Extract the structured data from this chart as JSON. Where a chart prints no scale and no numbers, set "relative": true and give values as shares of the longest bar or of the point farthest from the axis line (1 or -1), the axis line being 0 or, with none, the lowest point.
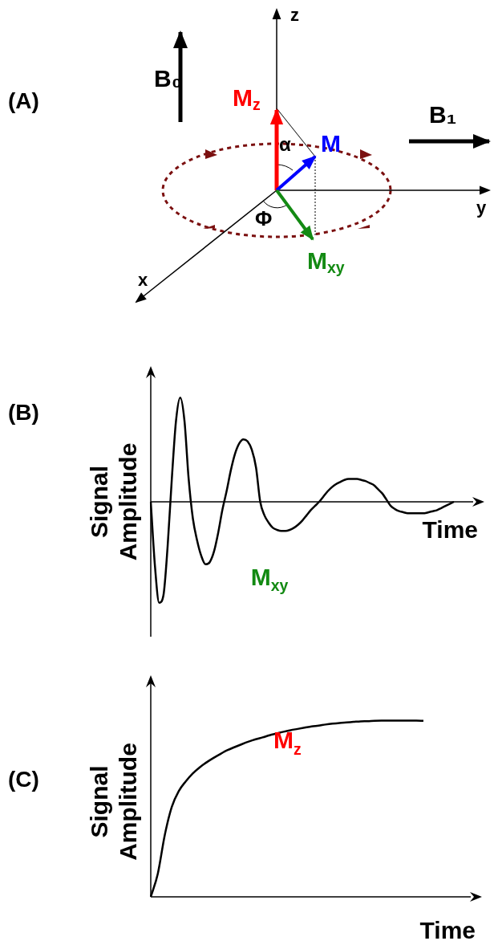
{
  "chart_data": [
    {
      "type": "other",
      "title": "(A)",
      "annotations": [
        "z",
        "y",
        "x",
        "B₀",
        "B₁",
        "M$_{z}$",
        "M",
        "α",
        "Φ",
        "M$_{xy}$"
      ]
    },
    {
      "type": "line",
      "title": "(B)",
      "xlabel": "Time",
      "ylabel": "Signal Amplitude",
      "annotations": [
        "M$_{xy}$"
      ],
      "relative": true,
      "marker": "none",
      "categories": [
        null,
        null,
        null,
        null,
        null,
        null,
        null,
        null,
        null,
        null,
        null,
        null,
        null,
        null,
        null,
        null,
        null,
        null,
        null,
        null,
        null,
        null,
        null,
        null,
        null,
        null,
        null,
        null,
        null,
        null,
        null,
        null,
        null,
        null,
        null,
        null,
        null,
        null,
        null,
        null,
        null,
        null,
        null,
        null,
        null,
        null,
        null,
        null,
        null,
        null,
        null,
        null,
        null,
        null,
        null,
        null,
        null,
        null,
        null,
        null,
        null,
        null,
        null,
        null,
        null,
        null,
        null,
        null,
        null,
        null,
        null,
        null,
        null
      ],
      "series": [
        {
          "color": "#000000",
          "values": [
            0,
            -0.62,
            -0.97,
            -0.9,
            -0.43,
            0.22,
            0.78,
            1,
            0.78,
            0.22,
            -0.16,
            -0.37,
            -0.52,
            -0.6,
            -0.58,
            -0.48,
            -0.3,
            -0.08,
            0.1,
            0.3,
            0.46,
            0.56,
            0.6,
            0.58,
            0.5,
            0.33,
            0,
            -0.13,
            -0.2,
            -0.25,
            -0.27,
            -0.28,
            -0.28,
            -0.27,
            -0.25,
            -0.22,
            -0.18,
            -0.13,
            -0.08,
            -0.04,
            0,
            0.05,
            0.1,
            0.14,
            0.17,
            0.19,
            0.21,
            0.22,
            0.22,
            0.22,
            0.21,
            0.2,
            0.18,
            0.16,
            0.12,
            0.08,
            0.02,
            -0.04,
            -0.07,
            -0.09,
            -0.1,
            -0.11,
            -0.11,
            -0.11,
            -0.11,
            -0.11,
            -0.1,
            -0.09,
            -0.08,
            -0.06,
            -0.04,
            -0.02,
            0
          ]
        }
      ]
    },
    {
      "type": "line",
      "title": "(C)",
      "xlabel": "Time",
      "ylabel": "Signal Amplitude",
      "annotations": [
        "M$_{z}$"
      ],
      "relative": true,
      "marker": "none",
      "categories": [
        null,
        null,
        null,
        null,
        null,
        null,
        null,
        null,
        null,
        null,
        null,
        null,
        null,
        null,
        null,
        null,
        null,
        null,
        null,
        null,
        null,
        null,
        null,
        null,
        null,
        null,
        null,
        null,
        null,
        null,
        null,
        null,
        null,
        null,
        null,
        null,
        null,
        null,
        null,
        null
      ],
      "series": [
        {
          "color": "#000000",
          "values": [
            0,
            0.13,
            0.35,
            0.51,
            0.6,
            0.655,
            0.7,
            0.735,
            0.764,
            0.789,
            0.812,
            0.833,
            0.85,
            0.866,
            0.881,
            0.894,
            0.905,
            0.917,
            0.927,
            0.937,
            0.946,
            0.953,
            0.96,
            0.967,
            0.972,
            0.978,
            0.983,
            0.987,
            0.99,
            0.993,
            0.996,
            0.997,
            0.999,
            1,
            1,
            1,
            1,
            1,
            1,
            0.999
          ]
        }
      ]
    }
  ]
}
